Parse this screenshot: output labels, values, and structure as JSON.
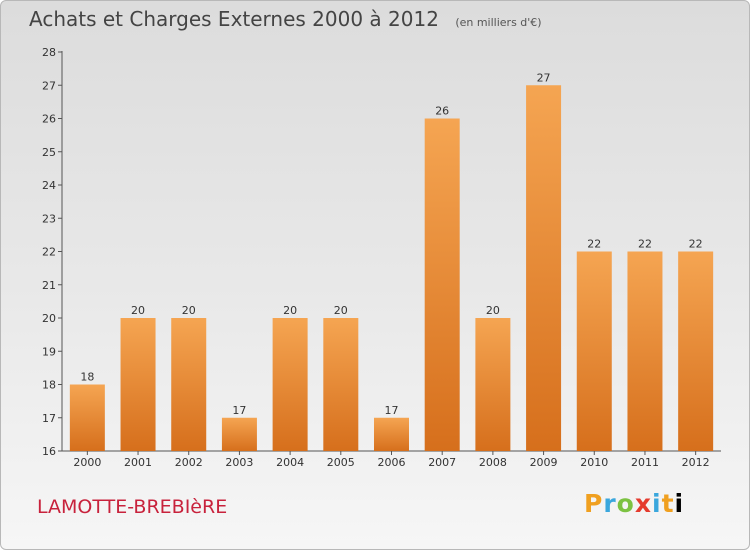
{
  "chart_data": {
    "type": "bar",
    "title": "Achats et Charges Externes 2000 à 2012",
    "subtitle": "(en milliers d'€)",
    "categories": [
      "2000",
      "2001",
      "2002",
      "2003",
      "2004",
      "2005",
      "2006",
      "2007",
      "2008",
      "2009",
      "2010",
      "2011",
      "2012"
    ],
    "values": [
      18,
      20,
      20,
      17,
      20,
      20,
      17,
      26,
      20,
      27,
      22,
      22,
      22
    ],
    "ylim": [
      16,
      28
    ],
    "yticks": [
      16,
      17,
      18,
      19,
      20,
      21,
      22,
      23,
      24,
      25,
      26,
      27,
      28
    ],
    "grid": false,
    "legend": "none",
    "bar_color_top": "#f5a552",
    "bar_color_bottom": "#d66f1c"
  },
  "footer": {
    "commune": "LAMOTTE-BREBIèRE",
    "logo": "Proxiti"
  }
}
